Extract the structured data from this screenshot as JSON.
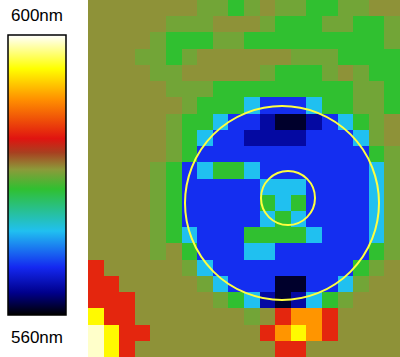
{
  "chart_data": {
    "type": "heatmap",
    "tick_labels": false,
    "colorbar": {
      "range": [
        560,
        600
      ],
      "ticks": [
        {
          "value": 600,
          "label": "600nm"
        },
        {
          "value": 560,
          "label": "560nm"
        }
      ]
    },
    "values": [
      [
        581,
        581,
        581,
        581,
        581,
        581,
        581,
        580,
        580,
        578,
        580,
        581,
        580,
        580,
        578,
        578,
        580,
        580,
        581,
        581
      ],
      [
        581,
        581,
        581,
        581,
        581,
        580,
        580,
        580,
        581,
        581,
        581,
        580,
        578,
        578,
        578,
        580,
        580,
        578,
        578,
        580
      ],
      [
        581,
        581,
        581,
        581,
        580,
        578,
        578,
        578,
        580,
        580,
        578,
        578,
        578,
        578,
        578,
        578,
        578,
        578,
        578,
        580
      ],
      [
        581,
        581,
        581,
        580,
        580,
        578,
        580,
        581,
        581,
        581,
        581,
        581,
        581,
        580,
        580,
        580,
        578,
        578,
        578,
        578
      ],
      [
        581,
        581,
        581,
        581,
        580,
        580,
        581,
        581,
        581,
        581,
        581,
        580,
        578,
        578,
        578,
        580,
        581,
        580,
        578,
        578
      ],
      [
        581,
        581,
        581,
        581,
        581,
        580,
        580,
        580,
        578,
        578,
        578,
        578,
        578,
        578,
        578,
        578,
        578,
        580,
        580,
        578
      ],
      [
        581,
        581,
        581,
        581,
        581,
        581,
        580,
        578,
        578,
        578,
        572,
        567,
        567,
        567,
        572,
        578,
        578,
        580,
        580,
        578
      ],
      [
        581,
        581,
        581,
        581,
        581,
        580,
        578,
        578,
        572,
        567,
        567,
        564,
        561,
        561,
        564,
        567,
        572,
        578,
        580,
        581
      ],
      [
        581,
        581,
        581,
        581,
        581,
        580,
        578,
        572,
        567,
        567,
        564,
        564,
        564,
        564,
        567,
        567,
        567,
        572,
        580,
        581
      ],
      [
        581,
        581,
        581,
        581,
        581,
        580,
        578,
        567,
        567,
        567,
        567,
        567,
        567,
        567,
        567,
        567,
        567,
        567,
        578,
        580
      ],
      [
        581,
        581,
        581,
        581,
        580,
        578,
        567,
        572,
        578,
        578,
        572,
        567,
        567,
        567,
        567,
        567,
        567,
        567,
        572,
        580
      ],
      [
        581,
        581,
        581,
        581,
        580,
        578,
        567,
        567,
        567,
        567,
        567,
        572,
        572,
        572,
        567,
        567,
        567,
        567,
        572,
        580
      ],
      [
        581,
        581,
        581,
        581,
        580,
        578,
        567,
        567,
        567,
        567,
        567,
        578,
        572,
        578,
        567,
        567,
        567,
        567,
        572,
        580
      ],
      [
        581,
        581,
        581,
        581,
        580,
        578,
        567,
        567,
        567,
        567,
        567,
        572,
        578,
        572,
        567,
        567,
        567,
        567,
        572,
        580
      ],
      [
        581,
        581,
        581,
        581,
        580,
        578,
        572,
        567,
        567,
        567,
        578,
        578,
        578,
        578,
        572,
        567,
        567,
        567,
        572,
        580
      ],
      [
        581,
        581,
        581,
        581,
        580,
        581,
        578,
        567,
        567,
        567,
        572,
        572,
        567,
        567,
        567,
        567,
        567,
        567,
        578,
        580
      ],
      [
        586,
        581,
        581,
        581,
        581,
        581,
        580,
        572,
        567,
        567,
        567,
        567,
        567,
        567,
        567,
        567,
        567,
        578,
        580,
        581
      ],
      [
        586,
        586,
        581,
        581,
        581,
        581,
        581,
        580,
        572,
        567,
        567,
        567,
        561,
        561,
        567,
        567,
        572,
        580,
        581,
        581
      ],
      [
        586,
        586,
        586,
        581,
        581,
        581,
        581,
        581,
        580,
        578,
        572,
        564,
        561,
        564,
        572,
        578,
        580,
        581,
        581,
        581
      ],
      [
        595,
        586,
        586,
        581,
        581,
        581,
        581,
        581,
        581,
        581,
        580,
        581,
        586,
        591,
        591,
        586,
        581,
        581,
        581,
        581
      ],
      [
        599,
        595,
        586,
        586,
        581,
        581,
        581,
        581,
        581,
        581,
        581,
        586,
        591,
        595,
        591,
        586,
        581,
        581,
        581,
        581
      ],
      [
        599,
        595,
        586,
        581,
        581,
        581,
        581,
        581,
        581,
        581,
        581,
        581,
        586,
        586,
        581,
        581,
        581,
        581,
        581,
        581
      ]
    ]
  }
}
